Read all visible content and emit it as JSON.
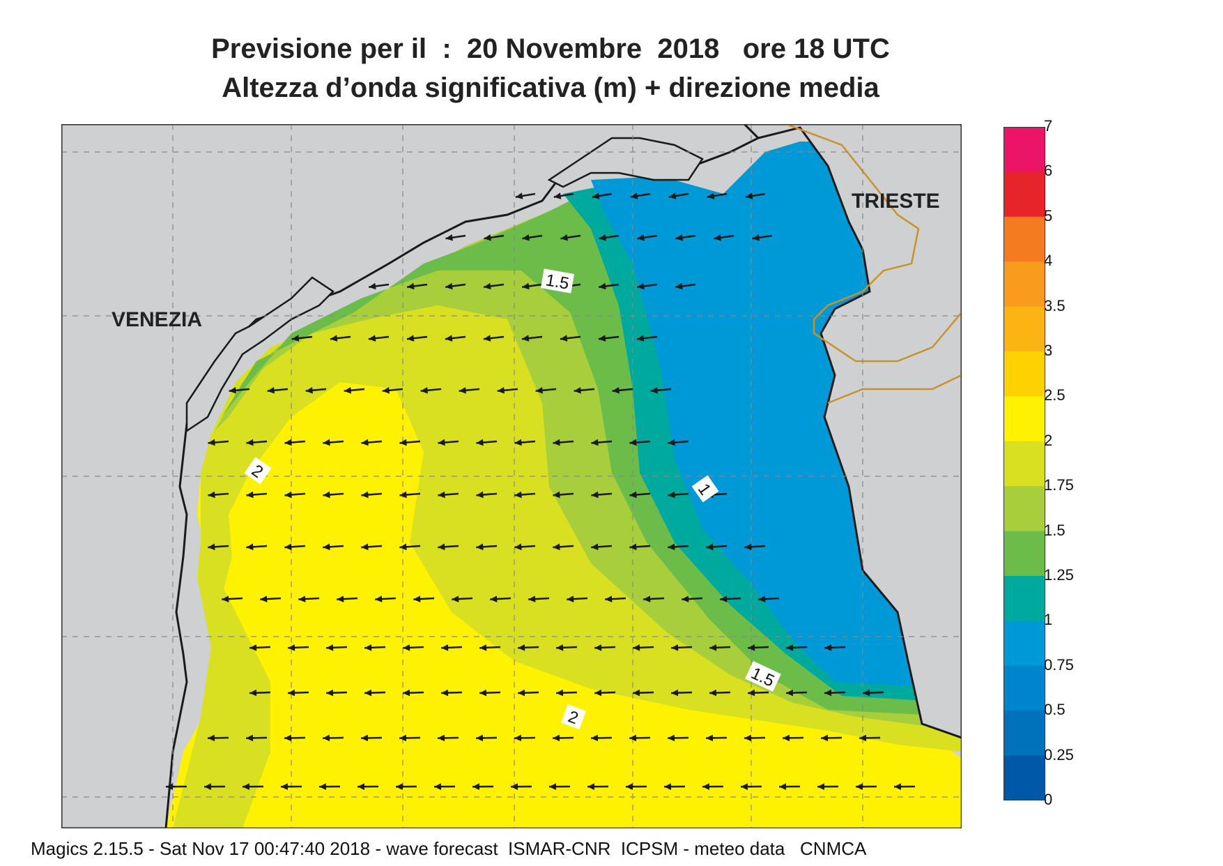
{
  "title_line1": "Previsione per il  :  20 Novembre  2018   ore 18 UTC",
  "title_line2": "Altezza d’onda significativa (m) + direzione media",
  "cities": {
    "venezia": "VENEZIA",
    "trieste": "TRIESTE"
  },
  "contour_labels": [
    "1.5",
    "2",
    "1",
    "1.5",
    "2"
  ],
  "legend": {
    "labels": [
      "7",
      "6",
      "5",
      "4",
      "3.5",
      "3",
      "2.5",
      "2",
      "1.75",
      "1.5",
      "1.25",
      "1",
      "0.75",
      "0.5",
      "0.25",
      "0"
    ],
    "colors": [
      "#ec1466",
      "#e8242b",
      "#f57b20",
      "#f99b1c",
      "#fcb414",
      "#fed100",
      "#fff200",
      "#d8e021",
      "#a8cf3b",
      "#6cbc4a",
      "#00a99d",
      "#0099d8",
      "#0085cc",
      "#0071bb",
      "#0059a8"
    ]
  },
  "footer": "Magics 2.15.5 - Sat Nov 17 00:47:40 2018 - wave forecast  ISMAR-CNR  ICPSM - meteo data   CNMCA",
  "colors": {
    "land": "#cfd0d2",
    "coast": "#1a1a1a",
    "border": "#c8922a"
  }
}
